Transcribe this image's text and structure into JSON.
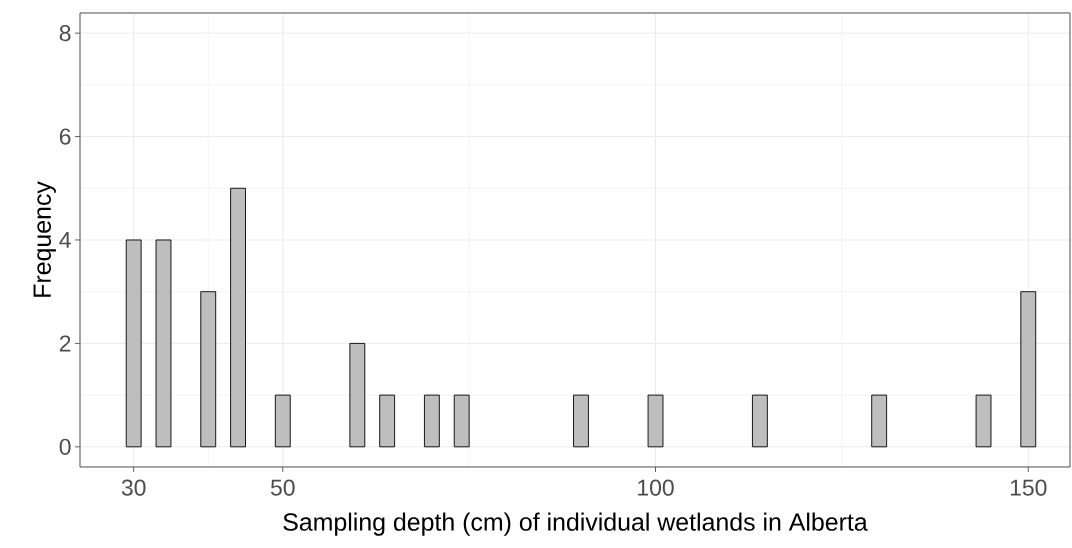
{
  "chart_data": {
    "type": "histogram",
    "xlabel": "Sampling depth (cm) of individual wetlands in Alberta",
    "ylabel": "Frequency",
    "bins": [
      29,
      31,
      33,
      35,
      37,
      39,
      41,
      43,
      45,
      47,
      49,
      51,
      53,
      55,
      57,
      59,
      61,
      63,
      65,
      67,
      69,
      71,
      73,
      75,
      77,
      79,
      81,
      83,
      85,
      87,
      89,
      91,
      93,
      95,
      97,
      99,
      101,
      103,
      105,
      107,
      109,
      111,
      113,
      115,
      117,
      119,
      121,
      123,
      125,
      127,
      129,
      131,
      133,
      135,
      137,
      139,
      141,
      143,
      145,
      147,
      149,
      151
    ],
    "values": [
      4,
      0,
      4,
      0,
      0,
      3,
      0,
      5,
      0,
      0,
      1,
      0,
      0,
      0,
      0,
      2,
      0,
      1,
      0,
      0,
      1,
      0,
      1,
      0,
      0,
      0,
      0,
      0,
      0,
      0,
      1,
      0,
      0,
      0,
      0,
      1,
      0,
      0,
      0,
      0,
      0,
      0,
      1,
      0,
      0,
      0,
      0,
      0,
      0,
      0,
      1,
      0,
      0,
      0,
      0,
      0,
      0,
      1,
      0,
      0,
      3
    ],
    "color": "#bebebe",
    "xlim": [
      22.8,
      155.6
    ],
    "ylim": [
      -0.39,
      8.39
    ],
    "xticks": [
      30,
      50,
      100,
      150
    ],
    "yticks": [
      0,
      2,
      4,
      6,
      8
    ],
    "grid": true
  }
}
